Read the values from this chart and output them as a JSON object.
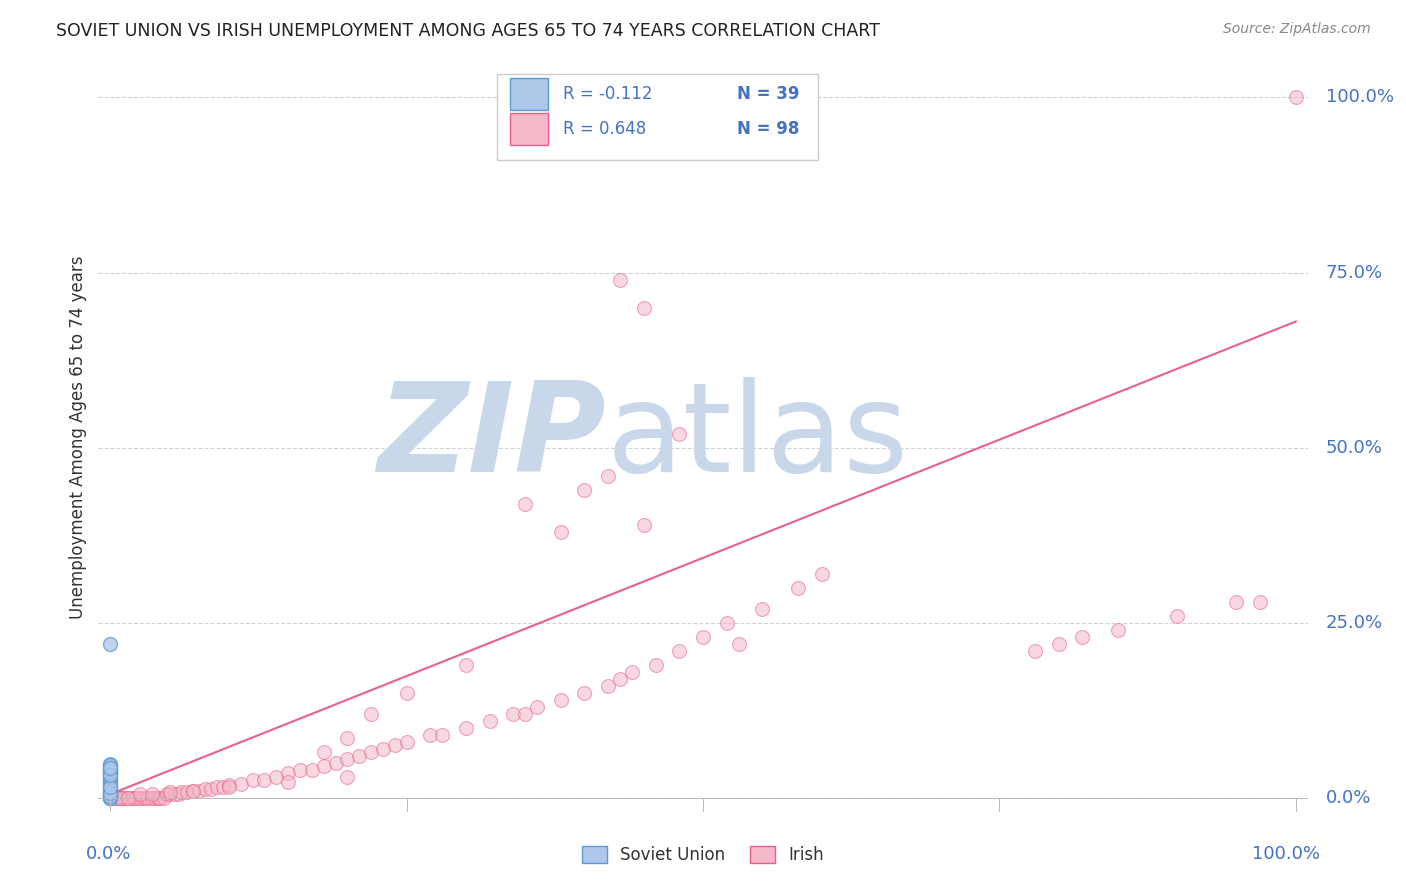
{
  "title": "SOVIET UNION VS IRISH UNEMPLOYMENT AMONG AGES 65 TO 74 YEARS CORRELATION CHART",
  "source": "Source: ZipAtlas.com",
  "ylabel": "Unemployment Among Ages 65 to 74 years",
  "legend_soviet_r": "R = -0.112",
  "legend_soviet_n": "N = 39",
  "legend_irish_r": "R = 0.648",
  "legend_irish_n": "N = 98",
  "legend_labels": [
    "Soviet Union",
    "Irish"
  ],
  "soviet_color": "#aec6e8",
  "soviet_color_dark": "#5b9bd5",
  "irish_color": "#f4b8c8",
  "irish_color_line": "#e8608a",
  "trendline_color": "#e8608a",
  "watermark_zip": "ZIP",
  "watermark_atlas": "atlas",
  "watermark_color": "#c8d8ea",
  "background_color": "#ffffff",
  "grid_color": "#c8c8c8",
  "title_color": "#222222",
  "axis_label_color": "#4472c4",
  "source_color": "#888888",
  "xlim": [
    0.0,
    1.0
  ],
  "ylim": [
    0.0,
    1.0
  ],
  "soviet_x": [
    0.0,
    0.0,
    0.0,
    0.0,
    0.0,
    0.0,
    0.0,
    0.0,
    0.0,
    0.0,
    0.0,
    0.0,
    0.0,
    0.0,
    0.0,
    0.0,
    0.0,
    0.0,
    0.0,
    0.0,
    0.0,
    0.0,
    0.0,
    0.0,
    0.0,
    0.0,
    0.0,
    0.0,
    0.0,
    0.0,
    0.0,
    0.0,
    0.0,
    0.0,
    0.0,
    0.0,
    0.0,
    0.0,
    0.0
  ],
  "soviet_y": [
    0.22,
    0.0,
    0.002,
    0.005,
    0.008,
    0.012,
    0.015,
    0.018,
    0.022,
    0.025,
    0.028,
    0.032,
    0.035,
    0.038,
    0.04,
    0.042,
    0.045,
    0.048,
    0.0,
    0.001,
    0.003,
    0.006,
    0.009,
    0.014,
    0.017,
    0.021,
    0.026,
    0.03,
    0.034,
    0.037,
    0.041,
    0.044,
    0.047,
    0.0,
    0.002,
    0.007,
    0.016,
    0.033,
    0.043
  ],
  "irish_x": [
    0.005,
    0.008,
    0.01,
    0.012,
    0.015,
    0.018,
    0.02,
    0.022,
    0.025,
    0.028,
    0.03,
    0.032,
    0.035,
    0.038,
    0.04,
    0.042,
    0.045,
    0.048,
    0.05,
    0.055,
    0.058,
    0.06,
    0.065,
    0.07,
    0.075,
    0.08,
    0.085,
    0.09,
    0.095,
    0.1,
    0.11,
    0.12,
    0.13,
    0.14,
    0.15,
    0.16,
    0.17,
    0.18,
    0.19,
    0.2,
    0.21,
    0.22,
    0.23,
    0.24,
    0.25,
    0.27,
    0.28,
    0.3,
    0.32,
    0.34,
    0.35,
    0.36,
    0.38,
    0.4,
    0.42,
    0.43,
    0.44,
    0.46,
    0.48,
    0.5,
    0.52,
    0.53,
    0.55,
    0.58,
    0.6,
    0.35,
    0.38,
    0.4,
    0.42,
    0.45,
    0.48,
    0.43,
    0.45,
    0.3,
    0.25,
    0.22,
    0.2,
    0.18,
    0.78,
    0.8,
    0.82,
    0.85,
    0.9,
    0.95,
    0.97,
    1.0,
    0.0,
    0.002,
    0.005,
    0.008,
    0.015,
    0.025,
    0.035,
    0.05,
    0.07,
    0.1,
    0.15,
    0.2
  ],
  "irish_y": [
    0.0,
    0.0,
    0.0,
    0.0,
    0.0,
    0.0,
    0.0,
    0.0,
    0.0,
    0.0,
    0.0,
    0.0,
    0.0,
    0.0,
    0.0,
    0.0,
    0.0,
    0.005,
    0.005,
    0.005,
    0.005,
    0.008,
    0.008,
    0.01,
    0.01,
    0.012,
    0.012,
    0.015,
    0.015,
    0.018,
    0.02,
    0.025,
    0.025,
    0.03,
    0.035,
    0.04,
    0.04,
    0.045,
    0.05,
    0.055,
    0.06,
    0.065,
    0.07,
    0.075,
    0.08,
    0.09,
    0.09,
    0.1,
    0.11,
    0.12,
    0.12,
    0.13,
    0.14,
    0.15,
    0.16,
    0.17,
    0.18,
    0.19,
    0.21,
    0.23,
    0.25,
    0.22,
    0.27,
    0.3,
    0.32,
    0.42,
    0.38,
    0.44,
    0.46,
    0.39,
    0.52,
    0.74,
    0.7,
    0.19,
    0.15,
    0.12,
    0.085,
    0.065,
    0.21,
    0.22,
    0.23,
    0.24,
    0.26,
    0.28,
    0.28,
    1.0,
    0.0,
    0.0,
    0.0,
    0.0,
    0.0,
    0.005,
    0.005,
    0.008,
    0.01,
    0.015,
    0.022,
    0.03
  ],
  "trendline_x": [
    0.0,
    1.0
  ],
  "trendline_y": [
    0.005,
    0.68
  ]
}
